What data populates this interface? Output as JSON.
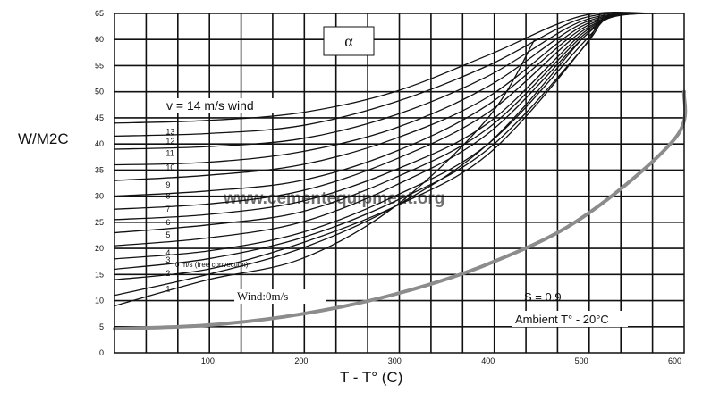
{
  "chart_data": {
    "type": "line",
    "xlabel": "T - T°  (C)",
    "ylabel": "W/M2C",
    "xlim": [
      0,
      610
    ],
    "ylim": [
      0,
      65
    ],
    "grid": true,
    "x_ticks": [
      100,
      200,
      300,
      400,
      500,
      600
    ],
    "x_tick_labels": [
      "100",
      "200",
      "300",
      "400",
      "500",
      "600"
    ],
    "y_ticks": [
      0,
      5,
      10,
      15,
      20,
      25,
      30,
      35,
      40,
      45,
      50,
      55,
      60,
      65
    ],
    "y_tick_labels": [
      "0",
      "5",
      "10",
      "15",
      "20",
      "25",
      "30",
      "35",
      "40",
      "45",
      "50",
      "55",
      "60",
      "65"
    ],
    "symbol": "α",
    "annotations": {
      "wind_header": "v = 14 m/s wind",
      "free_convection": "0 m/s (free convection)",
      "wind_zero": "Wind:0m/s",
      "emissivity": "S = 0.9",
      "ambient": "Ambient T° - 20°C",
      "watermark": "www.cementequipment.org"
    },
    "series": [
      {
        "name": "Wind:0m/s",
        "color": "#8c8c8c",
        "label_x": 130,
        "label_y": 11.2,
        "x": [
          0,
          100,
          200,
          300,
          400,
          500,
          600,
          610
        ],
        "y": [
          4.6,
          5.3,
          7.4,
          11.2,
          17.0,
          25.8,
          41.0,
          50.0
        ]
      },
      {
        "name": "0 m/s (free convection)",
        "label_x": 15,
        "label_y": 17.8,
        "x": [
          0,
          100,
          200,
          300,
          400,
          450
        ],
        "y": [
          9,
          14,
          18,
          28,
          45,
          60
        ]
      },
      {
        "name": "1",
        "label_x": 55,
        "label_y": 12.2,
        "x": [
          0,
          100,
          200,
          300,
          400,
          500
        ],
        "y": [
          11,
          15,
          20,
          28,
          40,
          60
        ]
      },
      {
        "name": "2",
        "label_x": 55,
        "label_y": 15.2,
        "x": [
          0,
          100,
          200,
          300,
          400,
          500,
          520
        ],
        "y": [
          14,
          16,
          21,
          28,
          38,
          58,
          65
        ]
      },
      {
        "name": "3",
        "label_x": 55,
        "label_y": 17.8,
        "x": [
          0,
          100,
          200,
          300,
          400,
          500,
          525
        ],
        "y": [
          16,
          18,
          22,
          29,
          39,
          58,
          65
        ]
      },
      {
        "name": "4",
        "label_x": 55,
        "label_y": 19.2,
        "x": [
          0,
          100,
          200,
          300,
          400,
          500,
          530
        ],
        "y": [
          18,
          19.5,
          23,
          30,
          40,
          59,
          65
        ]
      },
      {
        "name": "5",
        "label_x": 55,
        "label_y": 22.6,
        "x": [
          0,
          100,
          200,
          300,
          400,
          500,
          535
        ],
        "y": [
          20.5,
          22,
          25,
          32,
          42,
          60,
          65
        ]
      },
      {
        "name": "6",
        "label_x": 55,
        "label_y": 25.0,
        "x": [
          0,
          100,
          200,
          300,
          400,
          500,
          540
        ],
        "y": [
          23,
          24.5,
          27,
          33.5,
          43,
          60.5,
          65
        ]
      },
      {
        "name": "7",
        "label_x": 55,
        "label_y": 27.5,
        "x": [
          0,
          100,
          200,
          300,
          400,
          500,
          545
        ],
        "y": [
          25.5,
          26.5,
          29,
          35,
          44,
          61,
          65
        ]
      },
      {
        "name": "8",
        "label_x": 55,
        "label_y": 30.0,
        "x": [
          0,
          100,
          200,
          300,
          400,
          500,
          550
        ],
        "y": [
          27.5,
          28.5,
          31,
          37,
          46,
          61.5,
          65
        ]
      },
      {
        "name": "9",
        "label_x": 55,
        "label_y": 32.2,
        "x": [
          0,
          100,
          200,
          300,
          400,
          500,
          555
        ],
        "y": [
          30,
          31,
          33,
          38.5,
          47.5,
          62,
          65
        ]
      },
      {
        "name": "10",
        "label_x": 55,
        "label_y": 35.5,
        "x": [
          0,
          100,
          200,
          300,
          400,
          500,
          560
        ],
        "y": [
          33,
          34,
          36,
          41,
          49,
          62.5,
          65
        ]
      },
      {
        "name": "11",
        "label_x": 55,
        "label_y": 38.2,
        "x": [
          0,
          100,
          200,
          300,
          400,
          500,
          565
        ],
        "y": [
          36,
          36.5,
          38.5,
          43,
          51,
          63,
          65
        ]
      },
      {
        "name": "12",
        "label_x": 55,
        "label_y": 40.5,
        "x": [
          0,
          100,
          200,
          300,
          400,
          500,
          570
        ],
        "y": [
          39,
          39.5,
          41,
          45.5,
          53,
          63.5,
          65
        ]
      },
      {
        "name": "13",
        "label_x": 55,
        "label_y": 42.3,
        "x": [
          0,
          100,
          200,
          300,
          400,
          500,
          575
        ],
        "y": [
          41.5,
          42,
          43.5,
          48,
          55,
          64,
          65
        ]
      },
      {
        "name": "14",
        "label_x": null,
        "label_y": null,
        "x": [
          0,
          100,
          200,
          300,
          400,
          500,
          580
        ],
        "y": [
          44,
          44.5,
          46,
          50,
          57,
          64.5,
          65
        ]
      }
    ]
  }
}
